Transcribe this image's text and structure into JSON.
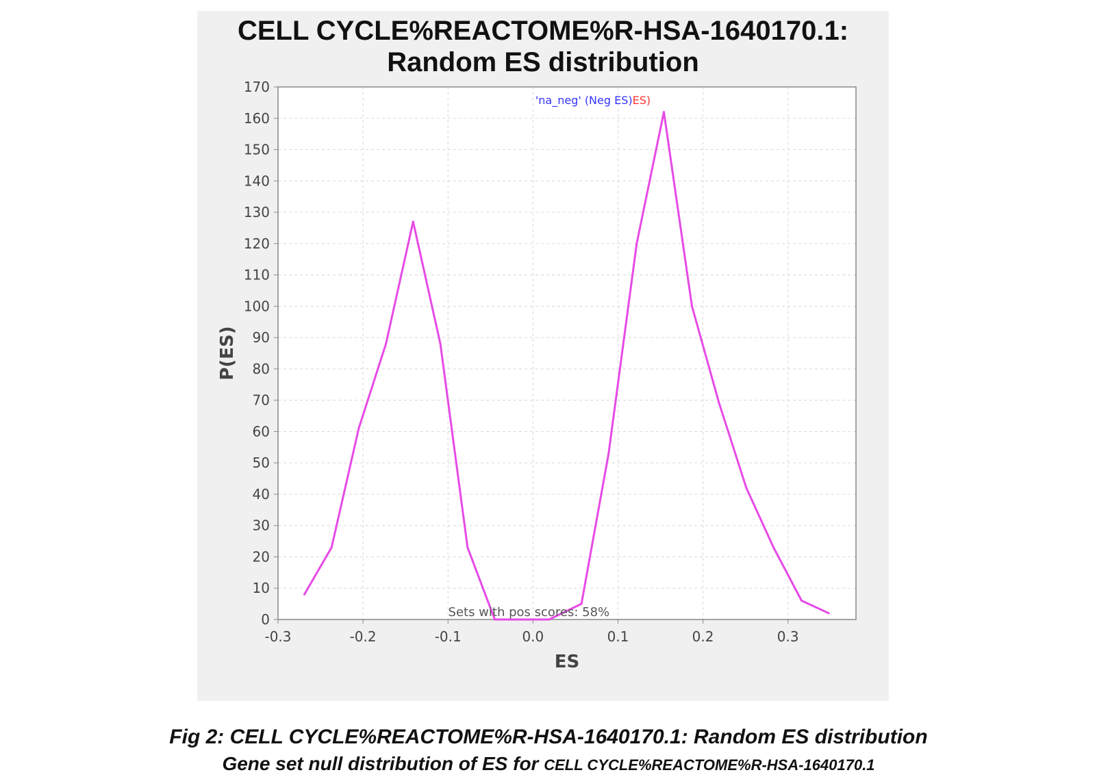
{
  "chart_data": {
    "type": "line",
    "title": [
      "CELL CYCLE%REACTOME%R-HSA-1640170.1:",
      "Random ES distribution"
    ],
    "xlabel": "ES",
    "ylabel": "P(ES)",
    "xlim": [
      -0.3,
      0.38
    ],
    "ylim": [
      0,
      170
    ],
    "x_ticks": [
      -0.3,
      -0.2,
      -0.1,
      0.0,
      0.1,
      0.2,
      0.3
    ],
    "x_tick_labels": [
      "-0.3",
      "-0.2",
      "-0.1",
      "0.0",
      "0.1",
      "0.2",
      "0.3"
    ],
    "y_ticks": [
      0,
      10,
      20,
      30,
      40,
      50,
      60,
      70,
      80,
      90,
      100,
      110,
      120,
      130,
      140,
      150,
      160,
      170
    ],
    "y_tick_labels": [
      "0",
      "10",
      "20",
      "30",
      "40",
      "50",
      "60",
      "70",
      "80",
      "90",
      "100",
      "110",
      "120",
      "130",
      "140",
      "150",
      "160",
      "170"
    ],
    "grid": true,
    "legend": {
      "placement": "top-center",
      "entries": [
        {
          "text": "'na_neg' (Neg ES)",
          "color": "#3333ff"
        },
        {
          "text": "ES)",
          "color": "#ff3333"
        }
      ]
    },
    "annotation": "Sets with pos scores: 58%",
    "series": [
      {
        "color": "#e64ae6",
        "x": [
          -0.269,
          -0.237,
          -0.205,
          -0.173,
          -0.141,
          -0.109,
          -0.077,
          -0.045,
          -0.013,
          0.019,
          0.057,
          0.089,
          0.122,
          0.154,
          0.187,
          0.219,
          0.251,
          0.283,
          0.316,
          0.348
        ],
        "y": [
          8,
          23,
          61,
          88,
          127,
          88,
          23,
          0,
          0,
          0,
          5,
          53,
          120,
          162,
          100,
          69,
          42,
          23,
          6,
          2
        ]
      }
    ]
  },
  "caption": {
    "line1": "Fig 2: CELL CYCLE%REACTOME%R-HSA-1640170.1: Random ES distribution",
    "line2_prefix": "Gene set null distribution of ES for ",
    "line2_name": "CELL CYCLE%REACTOME%R-HSA-1640170.1"
  }
}
